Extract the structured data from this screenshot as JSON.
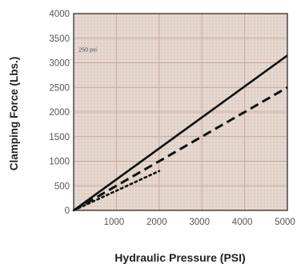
{
  "chart_data": {
    "type": "line",
    "title": "",
    "xlabel": "Hydraulic Pressure (PSI)",
    "ylabel": "Clamping Force (Lbs.)",
    "xlim": [
      0,
      5000
    ],
    "ylim": [
      0,
      4000
    ],
    "xticks": [
      1000,
      2000,
      3000,
      4000,
      5000
    ],
    "xtick_labels": [
      "1000",
      "2000",
      "3000",
      "4000",
      "5000"
    ],
    "yticks": [
      0,
      500,
      1000,
      1500,
      2000,
      2500,
      3000,
      3500,
      4000
    ],
    "ytick_labels": [
      "0",
      "500",
      "1000",
      "1500",
      "2000",
      "2500",
      "3000",
      "3500",
      "4000"
    ],
    "grid": true,
    "legend": "none",
    "annotation": {
      "text": "250 psi",
      "x": 120,
      "y": 3230
    },
    "series": [
      {
        "style": "solid",
        "color": "#111111",
        "x": [
          0,
          5000
        ],
        "y": [
          0,
          3150
        ]
      },
      {
        "style": "dashed",
        "color": "#111111",
        "x": [
          0,
          5000
        ],
        "y": [
          0,
          2500
        ]
      },
      {
        "style": "dotted",
        "color": "#111111",
        "x": [
          0,
          2000
        ],
        "y": [
          0,
          800
        ]
      }
    ],
    "colors": {
      "plot_background": "#e6d9cf",
      "grid": "#c8a8a0",
      "frame": "#222222"
    }
  }
}
